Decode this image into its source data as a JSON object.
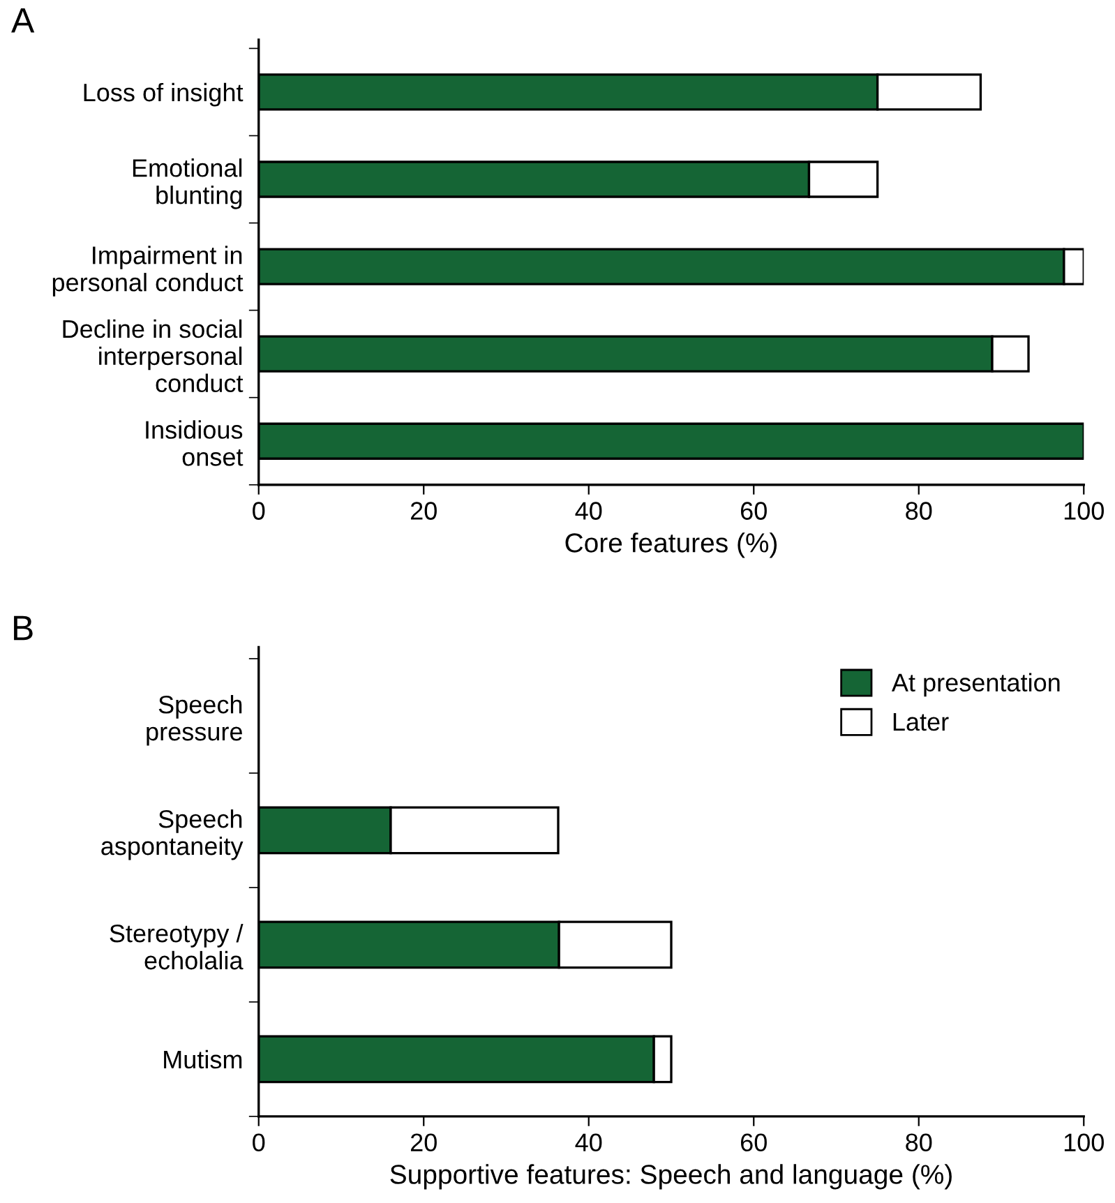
{
  "chart_data": [
    {
      "type": "bar",
      "title": "A",
      "orientation": "horizontal",
      "stacked": true,
      "xlabel": "Core features (%)",
      "categories": [
        "Loss of insight",
        "Emotional\nblunting",
        "Impairment in\npersonal conduct",
        "Decline in social\ninterpersonal\nconduct",
        "Insidious\nonset"
      ],
      "series": [
        {
          "color": "#156535",
          "values": [
            75,
            66.7,
            97.6,
            88.9,
            100
          ]
        },
        {
          "color": "#ffffff",
          "values": [
            12.5,
            8.3,
            2.4,
            4.4,
            null
          ]
        }
      ],
      "xlim": [
        0,
        100
      ],
      "xticks": [
        0,
        20,
        40,
        60,
        80,
        100
      ],
      "grid": false
    },
    {
      "type": "bar",
      "title": "B",
      "orientation": "horizontal",
      "stacked": true,
      "xlabel": "Supportive features: Speech and language (%)",
      "categories": [
        "Speech\npressure",
        "Speech\naspontaneity",
        "Stereotypy /\necholalia",
        "Mutism"
      ],
      "series": [
        {
          "name": "At presentation",
          "color": "#156535",
          "values": [
            null,
            16,
            36.4,
            47.9
          ]
        },
        {
          "name": "Later",
          "color": "#ffffff",
          "values": [
            null,
            20.3,
            13.6,
            2.1
          ]
        }
      ],
      "xlim": [
        0,
        100
      ],
      "xticks": [
        0,
        20,
        40,
        60,
        80,
        100
      ],
      "grid": false,
      "legend": "top right"
    }
  ]
}
